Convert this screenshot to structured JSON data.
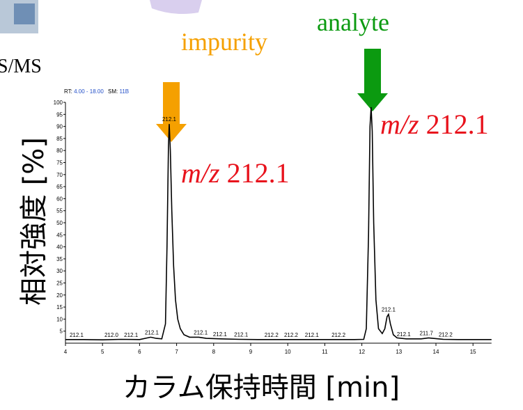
{
  "chart_data": {
    "type": "line",
    "subtitle_parts": [
      "RT:",
      "4.00 - 18.00",
      "SM:",
      "11B"
    ],
    "corner_text": "S/MS",
    "ylabel": "相対強度 [%]",
    "xlabel": "カラム保持時間 [min]",
    "color": "#000000",
    "x": [
      4.0,
      4.5,
      5.0,
      5.5,
      6.0,
      6.3,
      6.45,
      6.6,
      6.7,
      6.74,
      6.78,
      6.8,
      6.83,
      6.87,
      6.92,
      6.97,
      7.03,
      7.1,
      7.2,
      7.35,
      7.6,
      7.8,
      8.2,
      8.7,
      9.2,
      9.8,
      10.3,
      10.8,
      11.3,
      11.8,
      12.05,
      12.12,
      12.18,
      12.22,
      12.25,
      12.28,
      12.32,
      12.38,
      12.45,
      12.55,
      12.62,
      12.68,
      12.72,
      12.77,
      12.85,
      12.95,
      13.2,
      13.6,
      13.8,
      14.2,
      14.6,
      15.0,
      15.5
    ],
    "values": [
      1.5,
      1.5,
      1.4,
      1.6,
      1.5,
      2.5,
      2.0,
      1.8,
      8,
      40,
      82,
      91,
      80,
      55,
      32,
      18,
      10,
      6,
      3.5,
      2.5,
      2.5,
      2.0,
      1.8,
      1.6,
      1.5,
      1.5,
      1.5,
      1.5,
      1.5,
      1.5,
      1.6,
      6,
      45,
      90,
      98,
      88,
      50,
      18,
      6,
      4,
      6,
      11,
      12,
      8,
      3.5,
      2.2,
      1.8,
      1.8,
      2.2,
      1.6,
      1.5,
      1.5,
      1.5
    ],
    "xlim": [
      4,
      15.5
    ],
    "xticks": [
      4,
      5,
      6,
      7,
      8,
      9,
      10,
      11,
      12,
      13,
      14,
      15
    ],
    "ylim": [
      0,
      100
    ],
    "yticks": [
      5,
      10,
      15,
      20,
      25,
      30,
      35,
      40,
      45,
      50,
      55,
      60,
      65,
      70,
      75,
      80,
      85,
      90,
      95,
      100
    ],
    "peak_labels": [
      {
        "x": 4.3,
        "y": 1.5,
        "label": "212.1"
      },
      {
        "x": 5.24,
        "y": 1.5,
        "label": "212.0"
      },
      {
        "x": 5.77,
        "y": 1.5,
        "label": "212.1"
      },
      {
        "x": 6.33,
        "y": 2.5,
        "label": "212.1"
      },
      {
        "x": 6.8,
        "y": 91,
        "label": "212.1"
      },
      {
        "x": 7.65,
        "y": 2.5,
        "label": "212.1"
      },
      {
        "x": 8.17,
        "y": 1.8,
        "label": "212.1"
      },
      {
        "x": 8.74,
        "y": 1.6,
        "label": "212.1"
      },
      {
        "x": 9.56,
        "y": 1.5,
        "label": "212.2"
      },
      {
        "x": 10.09,
        "y": 1.5,
        "label": "212.2"
      },
      {
        "x": 10.65,
        "y": 1.5,
        "label": "212.1"
      },
      {
        "x": 11.37,
        "y": 1.5,
        "label": "212.2"
      },
      {
        "x": 12.72,
        "y": 12,
        "label": "212.1"
      },
      {
        "x": 13.13,
        "y": 1.8,
        "label": "212.1"
      },
      {
        "x": 13.74,
        "y": 2.2,
        "label": "211.7"
      },
      {
        "x": 14.26,
        "y": 1.6,
        "label": "212.2"
      }
    ],
    "annotations": [
      {
        "text": "impurity",
        "color": "#f5a000"
      },
      {
        "text": "analyte",
        "color": "#0b9a10"
      },
      {
        "italic": "m/z",
        "text": "212.1",
        "color": "#e8121c"
      },
      {
        "italic": "m/z",
        "text": "212.1",
        "color": "#e8121c"
      }
    ]
  }
}
